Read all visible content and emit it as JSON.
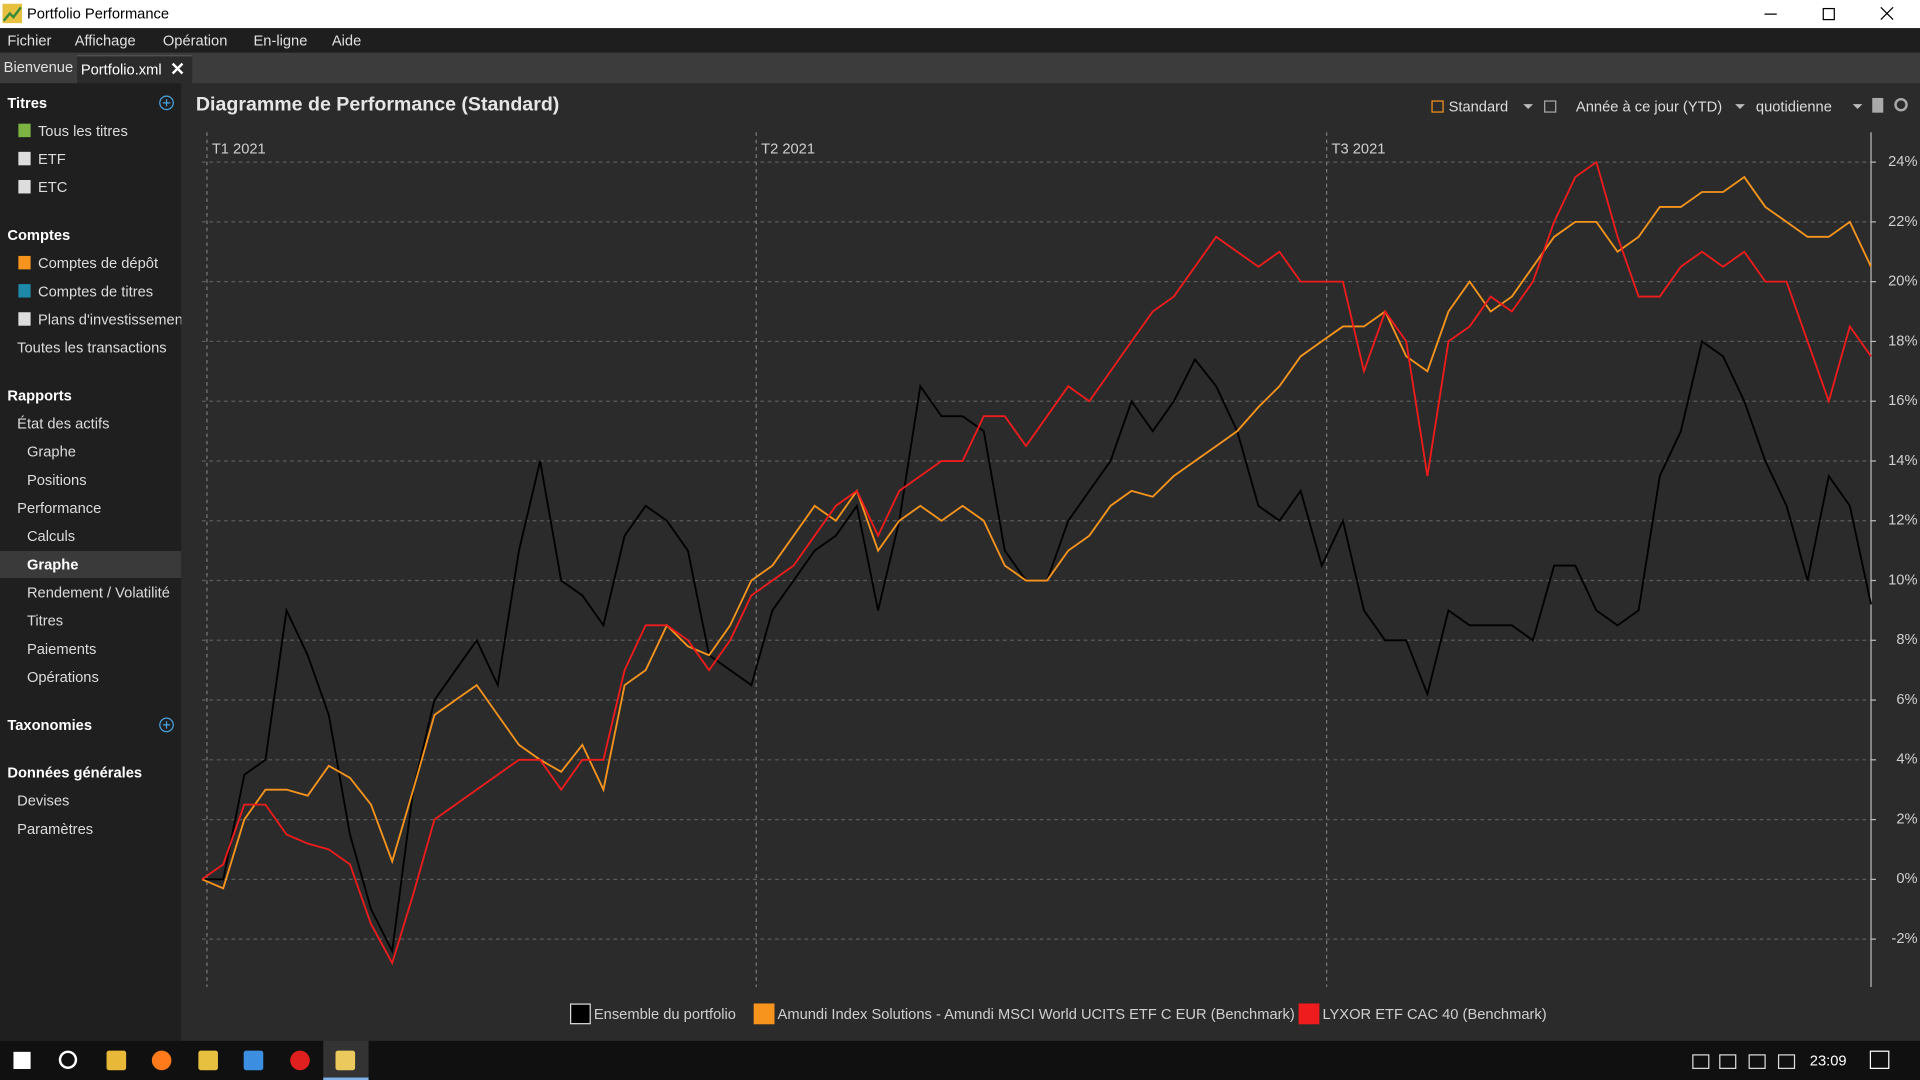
{
  "window": {
    "title": "Portfolio Performance"
  },
  "menu": [
    "Fichier",
    "Affichage",
    "Opération",
    "En-ligne",
    "Aide"
  ],
  "tabs": [
    "Bienvenue",
    "Portfolio.xml"
  ],
  "sidebar": [
    {
      "title": "Titres",
      "items": [
        "Tous les titres",
        "ETF",
        "ETC"
      ]
    },
    {
      "title": "Comptes",
      "items": [
        "Comptes de dépôt",
        "Comptes de titres",
        "Plans d'investissemen",
        "Toutes les transactions"
      ]
    },
    {
      "title": "Rapports",
      "items": [
        "État des actifs",
        "Graphe",
        "Positions",
        "Performance",
        "Calculs",
        "Graphe",
        "Rendement / Volatilité",
        "Titres",
        "Paiements",
        "Opérations"
      ]
    },
    {
      "title": "Taxonomies",
      "items": []
    },
    {
      "title": "Données générales",
      "items": [
        "Devises",
        "Paramètres"
      ]
    }
  ],
  "toolbar": [
    "Standard",
    "Année à ce jour (YTD)",
    "quotidienne"
  ],
  "taskbar": {
    "time": "23:09"
  },
  "chart_data": {
    "type": "line",
    "title": "Diagramme de Performance (Standard)",
    "categories": [
      "T1 2021",
      null,
      null,
      null,
      null,
      null,
      null,
      null,
      null,
      null,
      null,
      null,
      null,
      null,
      null,
      null,
      null,
      null,
      null,
      null,
      null,
      null,
      null,
      null,
      null,
      null,
      "T2 2021",
      null,
      null,
      null,
      null,
      null,
      null,
      null,
      null,
      null,
      null,
      null,
      null,
      null,
      null,
      null,
      null,
      null,
      null,
      null,
      null,
      null,
      null,
      null,
      null,
      null,
      null,
      "T3 2021",
      null,
      null,
      null,
      null,
      null,
      null,
      null,
      null,
      null,
      null,
      null,
      null,
      null,
      null,
      null,
      null,
      null,
      null,
      null,
      null,
      null,
      null,
      null,
      null,
      null,
      null
    ],
    "series": [
      {
        "name": "Ensemble du portfolio",
        "color": "#000000",
        "values": [
          0,
          0,
          3.5,
          4,
          9,
          7.5,
          5.5,
          1.5,
          -1,
          -2.4,
          3,
          6,
          7,
          8,
          6.5,
          11,
          14,
          10,
          9.5,
          8.5,
          11.5,
          12.5,
          12,
          11,
          7.5,
          7,
          6.5,
          9,
          10,
          11,
          11.5,
          12.5,
          9,
          12,
          16.5,
          15.5,
          15.5,
          15,
          11,
          10,
          10,
          12,
          13,
          14,
          16,
          15,
          16,
          17.4,
          16.5,
          15,
          12.5,
          12,
          13,
          10.5,
          12,
          9,
          8,
          8,
          6.2,
          9,
          8.5,
          8.5,
          8.5,
          8,
          10.5,
          10.5,
          9,
          8.5,
          9,
          13.5,
          15,
          18,
          17.5,
          16,
          14,
          12.5,
          10,
          13.5,
          12.5,
          9.2
        ]
      },
      {
        "name": "Amundi Index Solutions - Amundi MSCI World UCITS ETF C EUR (Benchmark)",
        "color": "#f7941d",
        "values": [
          0,
          -0.3,
          2,
          3,
          3,
          2.8,
          3.8,
          3.4,
          2.5,
          0.6,
          3,
          5.5,
          6,
          6.5,
          5.5,
          4.5,
          4,
          3.6,
          4.5,
          3,
          6.5,
          7,
          8.5,
          7.8,
          7.5,
          8.5,
          10,
          10.5,
          11.5,
          12.5,
          12,
          13,
          11,
          12,
          12.5,
          12,
          12.5,
          12,
          10.5,
          10,
          10,
          11,
          11.5,
          12.5,
          13,
          12.8,
          13.5,
          14,
          14.5,
          15,
          15.8,
          16.5,
          17.5,
          18,
          18.5,
          18.5,
          19,
          17.5,
          17,
          19,
          20,
          19,
          19.5,
          20.5,
          21.5,
          22,
          22,
          21,
          21.5,
          22.5,
          22.5,
          23,
          23,
          23.5,
          22.5,
          22,
          21.5,
          21.5,
          22,
          20.5
        ]
      },
      {
        "name": "LYXOR ETF CAC 40 (Benchmark)",
        "color": "#ee1c1c",
        "values": [
          0,
          0.5,
          2.5,
          2.5,
          1.5,
          1.2,
          1,
          0.5,
          -1.5,
          -2.8,
          -0.5,
          2,
          2.5,
          3,
          3.5,
          4,
          4,
          3,
          4,
          4,
          7,
          8.5,
          8.5,
          8,
          7,
          8,
          9.5,
          10,
          10.5,
          11.5,
          12.5,
          13,
          11.5,
          13,
          13.5,
          14,
          14,
          15.5,
          15.5,
          14.5,
          15.5,
          16.5,
          16,
          17,
          18,
          19,
          19.5,
          20.5,
          21.5,
          21,
          20.5,
          21,
          20,
          20,
          20,
          17,
          19,
          18,
          13.5,
          18,
          18.5,
          19.5,
          19,
          20,
          22,
          23.5,
          24,
          21.5,
          19.5,
          19.5,
          20.5,
          21,
          20.5,
          21,
          20,
          20,
          18,
          16,
          18.5,
          17.5
        ]
      }
    ],
    "ylim": [
      -3.6,
      25
    ],
    "yticks": [
      {
        "value": -2,
        "label": "-2%"
      },
      {
        "value": 0,
        "label": "0%"
      },
      {
        "value": 2,
        "label": "2%"
      },
      {
        "value": 4,
        "label": "4%"
      },
      {
        "value": 6,
        "label": "6%"
      },
      {
        "value": 8,
        "label": "8%"
      },
      {
        "value": 10,
        "label": "10%"
      },
      {
        "value": 12,
        "label": "12%"
      },
      {
        "value": 14,
        "label": "14%"
      },
      {
        "value": 16,
        "label": "16%"
      },
      {
        "value": 18,
        "label": "18%"
      },
      {
        "value": 20,
        "label": "20%"
      },
      {
        "value": 22,
        "label": "22%"
      },
      {
        "value": 24,
        "label": "24%"
      }
    ],
    "grid": true,
    "y_axis_side": "right",
    "legend": "bottom"
  }
}
